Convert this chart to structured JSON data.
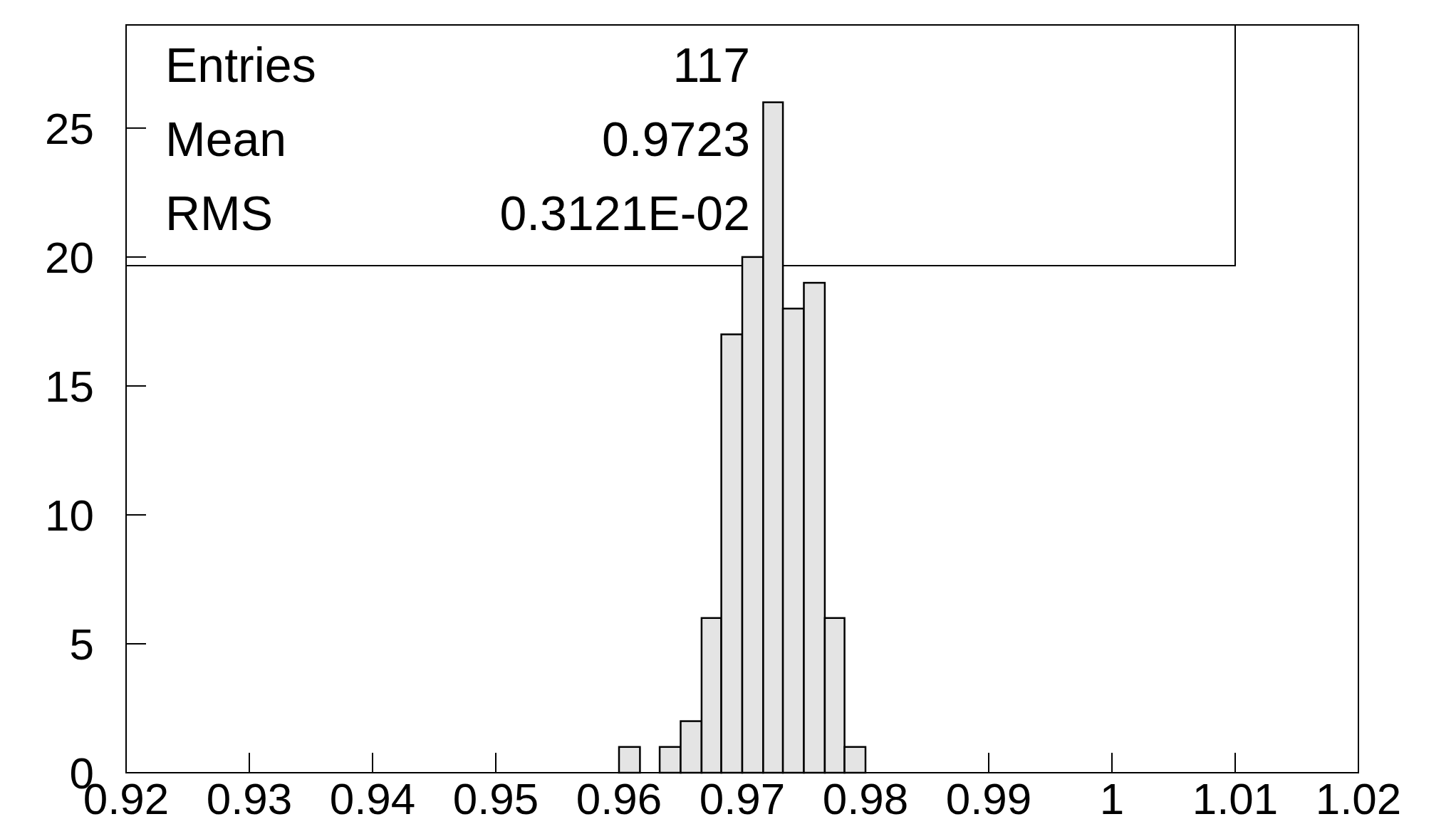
{
  "chart_data": {
    "type": "histogram",
    "bins": [
      0.96,
      0.9617,
      0.9633,
      0.965,
      0.9667,
      0.9683,
      0.97,
      0.9717,
      0.9733,
      0.975,
      0.9767,
      0.9783,
      0.98
    ],
    "values": [
      1,
      0,
      1,
      2,
      6,
      17,
      20,
      26,
      18,
      19,
      6,
      1
    ],
    "color": "#e4e4e4",
    "xlim": [
      0.92,
      1.02
    ],
    "xticks": [
      0.92,
      0.93,
      0.94,
      0.95,
      0.96,
      0.97,
      0.98,
      0.99,
      1,
      1.01,
      1.02
    ],
    "ylim": [
      0,
      29
    ],
    "yticks": [
      0,
      5,
      10,
      15,
      20,
      25
    ],
    "grid": false,
    "annotations": [
      "Entries 117",
      "Mean 0.9723",
      "RMS 0.3121E-02"
    ]
  }
}
